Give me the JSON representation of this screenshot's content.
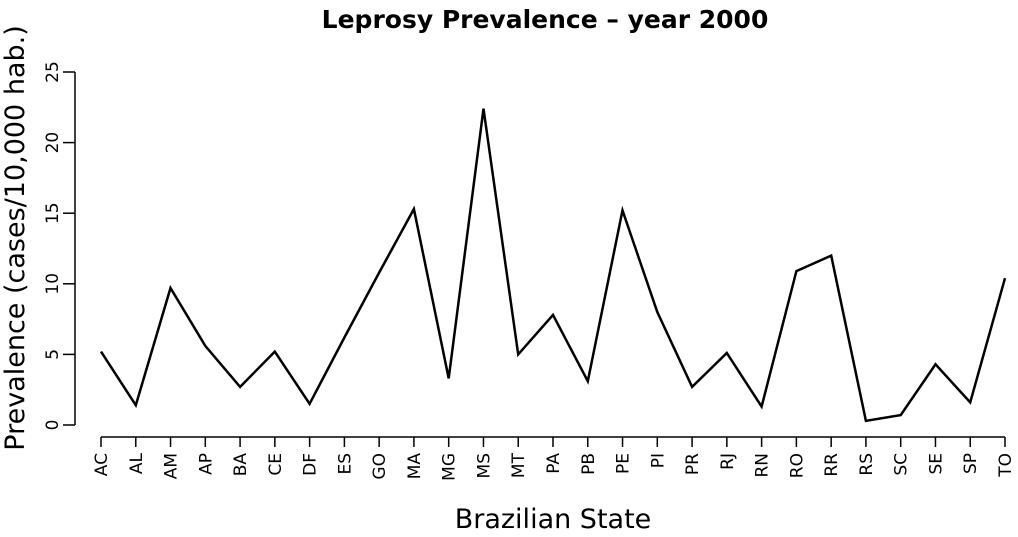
{
  "chart_data": {
    "type": "line",
    "title": "Leprosy Prevalence – year 2000",
    "xlabel": "Brazilian State",
    "ylabel": "Prevalence (cases/10,000 hab.)",
    "ylim": [
      0,
      25
    ],
    "yticks": [
      0,
      5,
      10,
      15,
      20,
      25
    ],
    "grid": false,
    "categories": [
      "AC",
      "AL",
      "AM",
      "AP",
      "BA",
      "CE",
      "DF",
      "ES",
      "GO",
      "MA",
      "MG",
      "MS",
      "MT",
      "PA",
      "PB",
      "PE",
      "PI",
      "PR",
      "RJ",
      "RN",
      "RO",
      "RR",
      "RS",
      "SC",
      "SE",
      "SP",
      "TO"
    ],
    "values": [
      5.2,
      1.4,
      9.7,
      5.6,
      2.7,
      5.2,
      1.5,
      6.2,
      10.8,
      15.3,
      3.3,
      22.4,
      5.0,
      7.8,
      3.1,
      15.2,
      8.0,
      2.7,
      5.1,
      1.3,
      10.9,
      12.0,
      0.3,
      0.7,
      4.3,
      1.6,
      10.4
    ]
  }
}
